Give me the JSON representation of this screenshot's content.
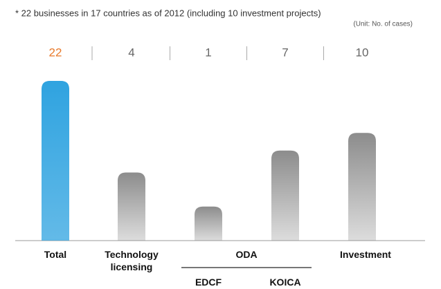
{
  "chart_data": {
    "type": "bar",
    "note": "* 22 businesses in 17 countries as of 2012 (including 10 investment projects)",
    "unit": "(Unit: No. of cases)",
    "categories": [
      "Total",
      "Technology licensing",
      "EDCF",
      "KOICA",
      "Investment"
    ],
    "group_label": "ODA",
    "values": [
      22,
      4,
      1,
      7,
      10
    ],
    "colors": [
      "#2fa3e0",
      "#8c8c8c",
      "#8c8c8c",
      "#8c8c8c",
      "#8c8c8c"
    ]
  }
}
